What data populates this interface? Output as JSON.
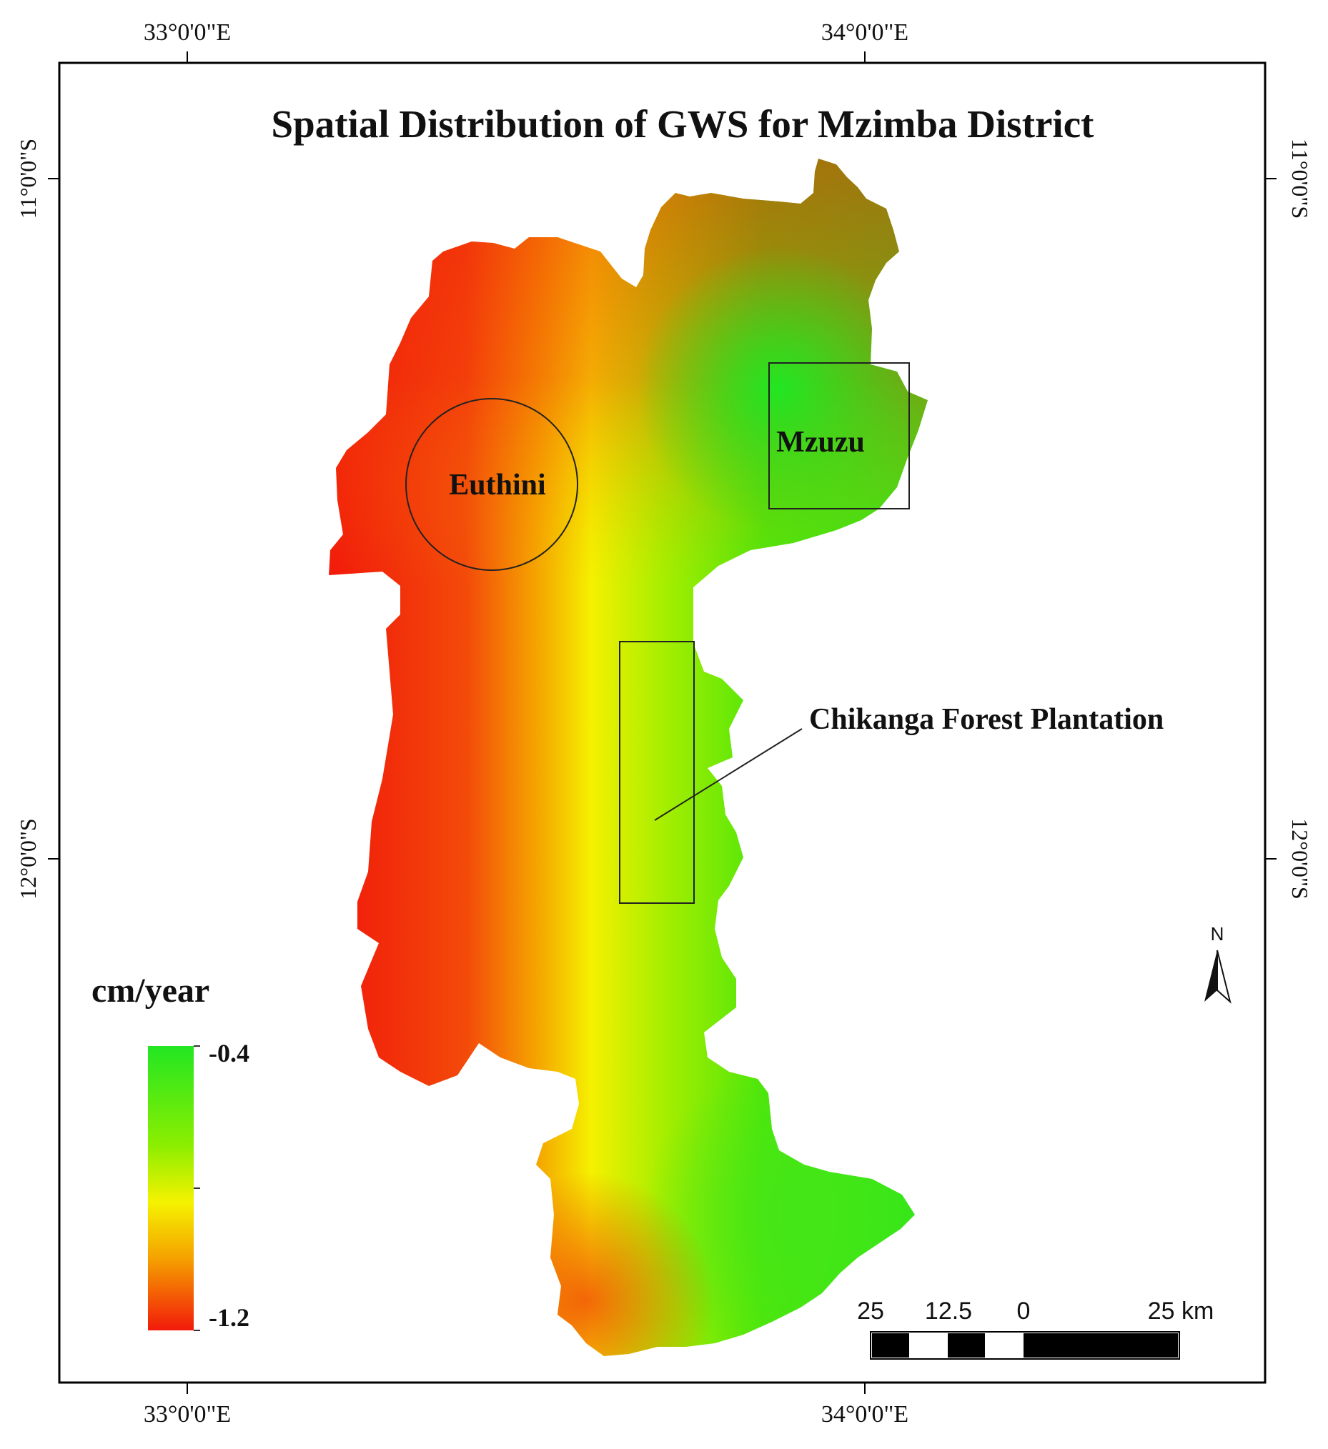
{
  "map": {
    "title": "Spatial Distribution of GWS for Mzimba District",
    "coords": {
      "lon_33": "33°0'0\"E",
      "lon_34": "34°0'0\"E",
      "lat_11": "11°0'0\"S",
      "lat_12": "12°0'0\"S"
    },
    "labels": {
      "euthini": "Euthini",
      "mzuzu": "Mzuzu",
      "chikanga": "Chikanga Forest Plantation"
    },
    "legend": {
      "unit": "cm/year",
      "max": "-0.4",
      "min": "-1.2",
      "colors": {
        "high": "#22e622",
        "mid": "#f5f500",
        "low": "#f21a0a"
      }
    },
    "north": {
      "letter": "N"
    },
    "scale": {
      "ticks": [
        "25",
        "12.5",
        "0",
        "25 km"
      ],
      "unit": "km"
    }
  }
}
